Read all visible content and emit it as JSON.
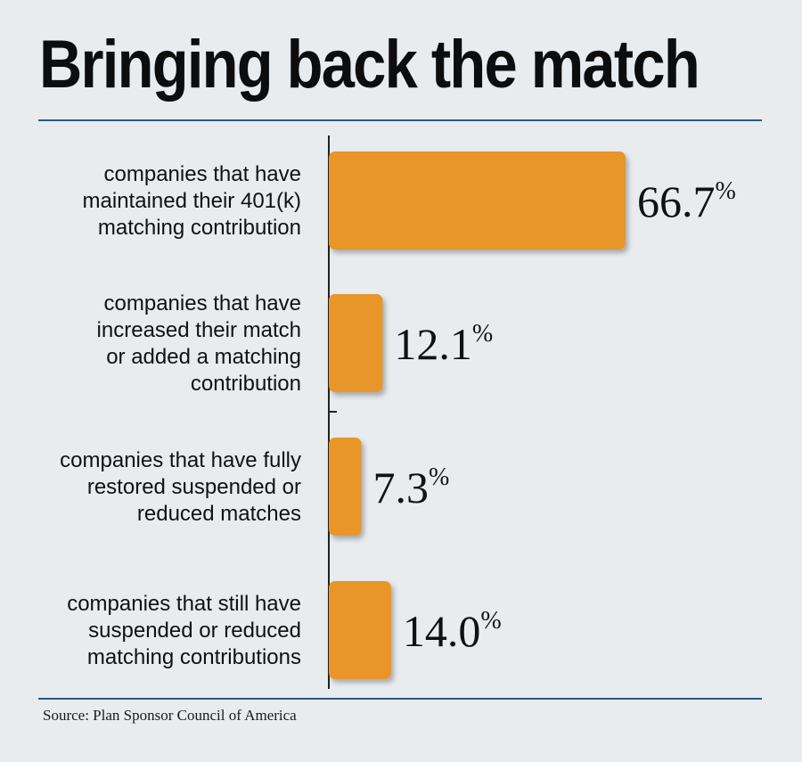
{
  "chart_data": {
    "type": "bar",
    "orientation": "horizontal",
    "title": "Bringing back the match",
    "categories": [
      [
        "companies that have",
        "maintained their 401(k)",
        "matching contribution"
      ],
      [
        "companies that have",
        "increased their match",
        "or added a matching",
        "contribution"
      ],
      [
        "companies that have fully",
        "restored suspended or",
        "reduced matches"
      ],
      [
        "companies that still have",
        "suspended or reduced",
        "matching contributions"
      ]
    ],
    "values": [
      66.7,
      12.1,
      7.3,
      14.0
    ],
    "value_labels": [
      "66.7",
      "12.1",
      "7.3",
      "14.0"
    ],
    "unit": "%",
    "xlim": [
      0,
      100
    ],
    "grid": false,
    "legend": "none",
    "bar_color": "#e8952a",
    "source": "Source: Plan Sponsor Council of America"
  }
}
